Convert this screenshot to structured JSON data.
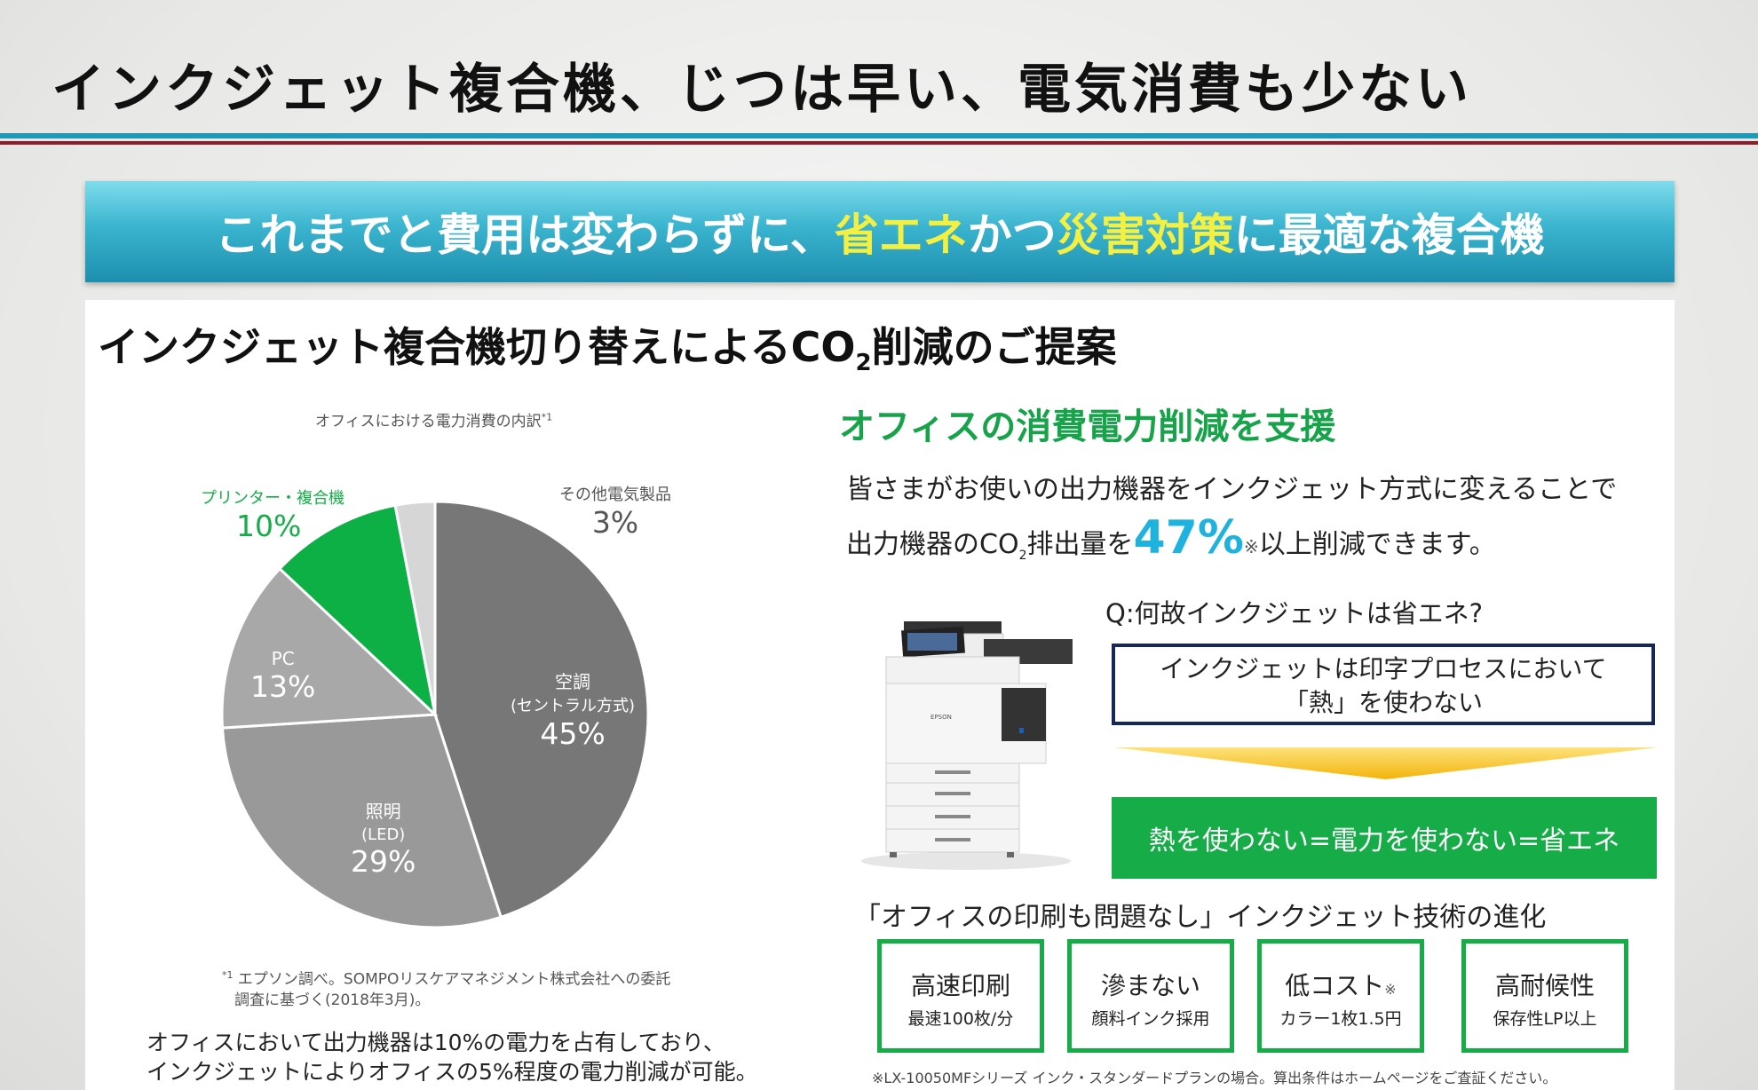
{
  "header": {
    "title": "インクジェット複合機、じつは早い、電気消費も少ない"
  },
  "banner": {
    "part1": "これまでと費用は変わらずに、",
    "highlight1": "省エネ",
    "part2": "かつ",
    "highlight2": "災害対策",
    "part3": "に最適な複合機",
    "highlight_color": "#f4f042",
    "gradient_color": "#3ab4cf"
  },
  "proposal": {
    "title_before": "インクジェット複合機切り替えによるCO",
    "title_sub": "2",
    "title_after": "削減のご提案"
  },
  "chart_data": {
    "type": "pie",
    "title": "オフィスにおける電力消費の内訳",
    "title_note": "*1",
    "unit": "%",
    "slices": [
      {
        "label": "空調",
        "sublabel": "(セントラル方式)",
        "value": 45,
        "value_label": "45%",
        "color": "#777777"
      },
      {
        "label": "照明",
        "sublabel": "(LED)",
        "value": 29,
        "value_label": "29%",
        "color": "#999999"
      },
      {
        "label": "PC",
        "sublabel": "",
        "value": 13,
        "value_label": "13%",
        "color": "#a8a8a8"
      },
      {
        "label": "プリンター・複合機",
        "sublabel": "",
        "value": 10,
        "value_label": "10%",
        "color": "#0cb045"
      },
      {
        "label": "その他電気製品",
        "sublabel": "",
        "value": 3,
        "value_label": "3%",
        "color": "#d6d6d6"
      }
    ]
  },
  "footnote": {
    "mark": "*1",
    "line1": "エプソン調べ。SOMPOリスケアマネジメント株式会社への委託",
    "line2": "調査に基づく(2018年3月)。"
  },
  "conclusion": {
    "line1": "オフィスにおいて出力機器は10%の電力を占有しており、",
    "line2": "インクジェットによりオフィスの5%程度の電力削減が可能。"
  },
  "support": {
    "title": "オフィスの消費電力削減を支援",
    "line1": "皆さまがお使いの出力機器をインクジェット方式に変えることで",
    "line2_a": "出力機器のCO",
    "line2_sub": "2",
    "line2_b": "排出量を",
    "percent": "47%",
    "note_mark": "※",
    "line2_c": "以上削減できます。"
  },
  "qa": {
    "question": "Q:何故インクジェットは省エネ?",
    "answer_line1": "インクジェットは印字プロセスにおいて",
    "answer_line2": "「熱」を使わない",
    "result": "熱を使わない=電力を使わない=省エネ",
    "arrow_color": "#f6bf10",
    "result_color": "#16ad48"
  },
  "printer": {
    "icon": "printer-image",
    "brand": "EPSON"
  },
  "tech": {
    "title": "「オフィスの印刷も問題なし」インクジェット技術の進化",
    "features": [
      {
        "main": "高速印刷",
        "mark": "",
        "sub": "最速100枚/分"
      },
      {
        "main": "滲まない",
        "mark": "",
        "sub": "顔料インク採用"
      },
      {
        "main": "低コスト",
        "mark": "※",
        "sub": "カラー1枚1.5円"
      },
      {
        "main": "高耐候性",
        "mark": "",
        "sub": "保存性LP以上"
      }
    ]
  },
  "bottom_note": "※LX-10050MFシリーズ インク・スタンダードプランの場合。算出条件はホームページをご査証ください。"
}
